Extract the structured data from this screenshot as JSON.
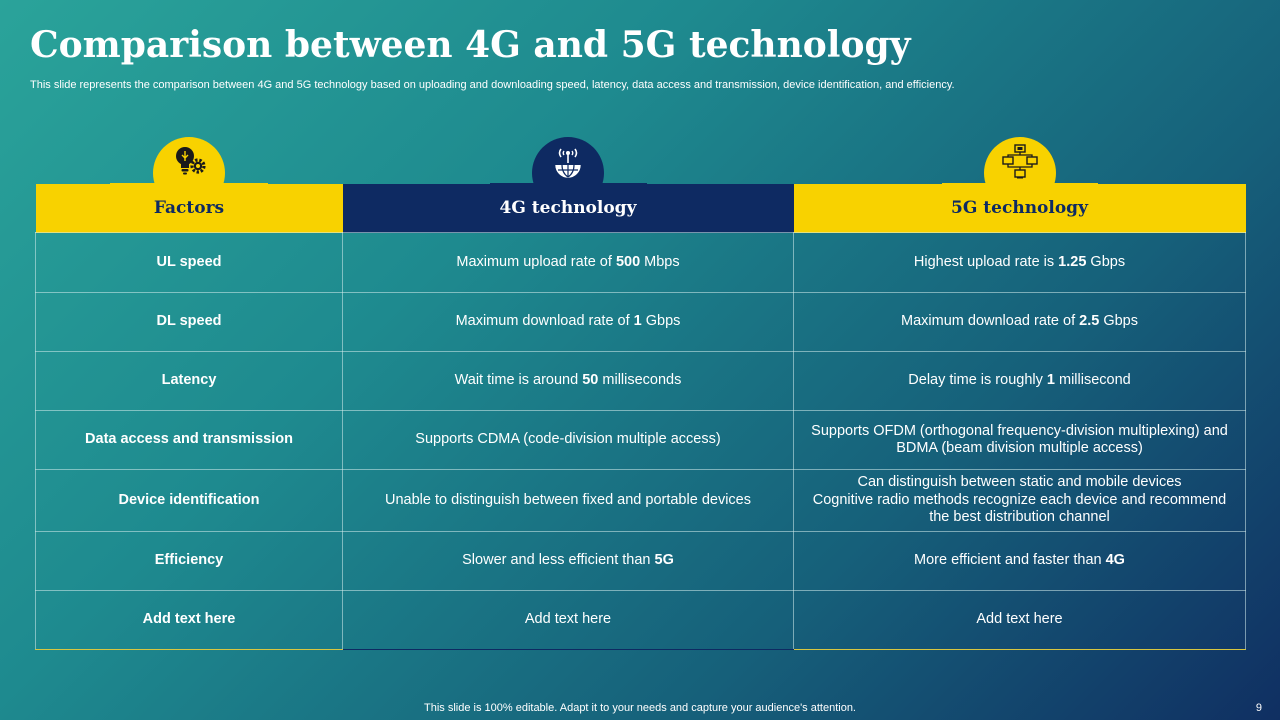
{
  "slide": {
    "title": "Comparison between 4G and 5G technology",
    "subtitle": "This slide represents the comparison between 4G and 5G technology based on uploading and downloading speed, latency, data access and transmission, device identification, and efficiency.",
    "footer": "This slide is 100% editable. Adapt it to your needs and capture your audience's attention.",
    "page_number": "9"
  },
  "colors": {
    "accent_yellow": "#f8d200",
    "navy": "#0e2a62"
  },
  "icons": [
    "lightbulb-gear-icon",
    "antenna-globe-icon",
    "network-devices-icon"
  ],
  "table": {
    "headers": [
      "Factors",
      "4G technology",
      "5G technology"
    ],
    "rows": [
      {
        "factor": "UL speed",
        "g4": [
          {
            "t": "Maximum upload rate of "
          },
          {
            "t": "500",
            "b": true
          },
          {
            "t": " Mbps"
          }
        ],
        "g5": [
          {
            "t": "Highest upload rate is "
          },
          {
            "t": "1.25",
            "b": true
          },
          {
            "t": " Gbps"
          }
        ]
      },
      {
        "factor": "DL speed",
        "g4": [
          {
            "t": "Maximum download rate of "
          },
          {
            "t": "1",
            "b": true
          },
          {
            "t": " Gbps"
          }
        ],
        "g5": [
          {
            "t": "Maximum download rate of "
          },
          {
            "t": "2.5",
            "b": true
          },
          {
            "t": " Gbps"
          }
        ]
      },
      {
        "factor": "Latency",
        "g4": [
          {
            "t": "Wait time is around "
          },
          {
            "t": "50",
            "b": true
          },
          {
            "t": " milliseconds"
          }
        ],
        "g5": [
          {
            "t": "Delay time is roughly "
          },
          {
            "t": "1",
            "b": true
          },
          {
            "t": " millisecond"
          }
        ]
      },
      {
        "factor": "Data access and transmission",
        "g4": [
          {
            "t": "Supports CDMA (code-division multiple access)"
          }
        ],
        "g5": [
          {
            "t": "Supports OFDM (orthogonal frequency-division multiplexing) and BDMA (beam division multiple access)"
          }
        ]
      },
      {
        "factor": "Device identification",
        "g4": [
          {
            "t": "Unable to distinguish between fixed and portable devices"
          }
        ],
        "g5": [
          {
            "t": "Can distinguish between static and mobile devices"
          },
          {
            "br": true
          },
          {
            "t": "Cognitive radio methods recognize each device and recommend the best distribution channel"
          }
        ]
      },
      {
        "factor": "Efficiency",
        "g4": [
          {
            "t": "Slower and less efficient than "
          },
          {
            "t": "5G",
            "b": true
          }
        ],
        "g5": [
          {
            "t": "More efficient and faster than "
          },
          {
            "t": "4G",
            "b": true
          }
        ]
      },
      {
        "factor": "Add  text here",
        "g4": [
          {
            "t": "Add text here"
          }
        ],
        "g5": [
          {
            "t": "Add text here"
          }
        ]
      }
    ]
  }
}
